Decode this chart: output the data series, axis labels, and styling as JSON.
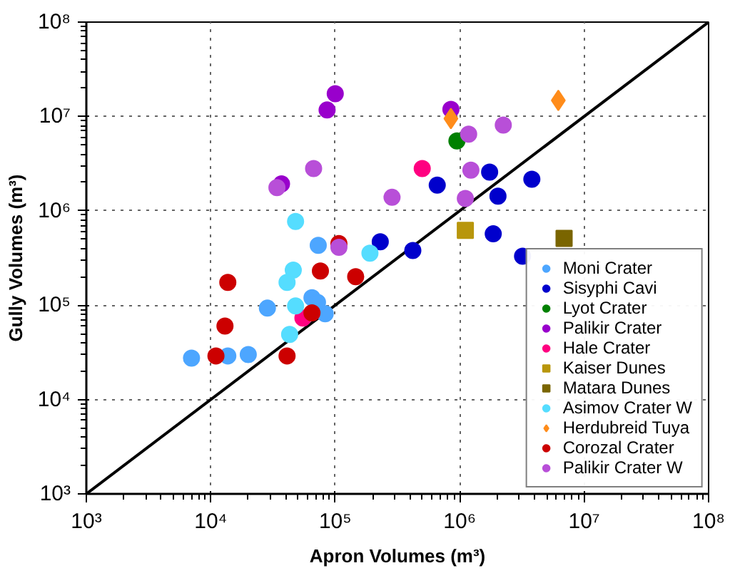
{
  "chart_data": {
    "type": "scatter",
    "xlabel": "Apron Volumes (m³)",
    "ylabel": "Gully Volumes (m³)",
    "log": "xy",
    "grid": true,
    "legend": "bottom right",
    "xlim": [
      1000,
      100000000
    ],
    "ylim": [
      1000,
      100000000
    ],
    "xticks": [
      {
        "value": 1000,
        "label": "10³"
      },
      {
        "value": 10000,
        "label": "10⁴"
      },
      {
        "value": 100000,
        "label": "10⁵"
      },
      {
        "value": 1000000,
        "label": "10⁶"
      },
      {
        "value": 10000000,
        "label": "10⁷"
      },
      {
        "value": 100000000,
        "label": "10⁸"
      }
    ],
    "yticks": [
      {
        "value": 1000,
        "label": "10³"
      },
      {
        "value": 10000,
        "label": "10⁴"
      },
      {
        "value": 100000,
        "label": "10⁵"
      },
      {
        "value": 1000000,
        "label": "10⁶"
      },
      {
        "value": 10000000,
        "label": "10⁷"
      },
      {
        "value": 100000000,
        "label": "10⁸"
      }
    ],
    "series": [
      {
        "type": "line",
        "color": "#000000",
        "marker": "none",
        "x": [
          1000,
          100000000
        ],
        "values": [
          1000,
          100000000
        ]
      },
      {
        "name": "Moni Crater",
        "color": "#4da6ff",
        "marker": "circle",
        "x": [
          7000,
          13700,
          20000,
          28500,
          65000,
          83000,
          72000,
          73000
        ],
        "values": [
          27500,
          29000,
          30000,
          93000,
          120000,
          81000,
          107000,
          430000
        ]
      },
      {
        "name": "Sisyphi Cavi",
        "color": "#0000cc",
        "marker": "circle",
        "x": [
          230000,
          420000,
          660000,
          1740000,
          3800000,
          2030000,
          1860000,
          3200000
        ],
        "values": [
          470000,
          380000,
          1870000,
          2570000,
          2160000,
          1430000,
          570000,
          330000
        ]
      },
      {
        "name": "Lyot Crater",
        "color": "#008000",
        "marker": "circle",
        "x": [
          950000
        ],
        "values": [
          5500000
        ]
      },
      {
        "name": "Palikir Crater",
        "color": "#9900cc",
        "marker": "circle",
        "x": [
          37000,
          86000,
          100000,
          850000
        ],
        "values": [
          1930000,
          11700000,
          17400000,
          11900000
        ]
      },
      {
        "name": "Hale Crater",
        "color": "#ff0080",
        "marker": "circle",
        "x": [
          55000,
          500000
        ],
        "values": [
          73000,
          2800000
        ]
      },
      {
        "name": "Kaiser Dunes",
        "color": "#b8960c",
        "marker": "square",
        "x": [
          1110000
        ],
        "values": [
          620000
        ]
      },
      {
        "name": "Matara Dunes",
        "color": "#7a6500",
        "marker": "square",
        "x": [
          6900000
        ],
        "values": [
          510000
        ]
      },
      {
        "name": "Asimov Crater W",
        "color": "#55ddff",
        "marker": "circle",
        "x": [
          43000,
          48000,
          41000,
          46000,
          190000,
          48000
        ],
        "values": [
          49000,
          98000,
          174000,
          235000,
          355000,
          770000
        ]
      },
      {
        "name": "Herdubreid Tuya",
        "color": "#ff8c1a",
        "marker": "diamond",
        "x": [
          850000,
          6200000
        ],
        "values": [
          9500000,
          14800000
        ]
      },
      {
        "name": "Corozal Crater",
        "color": "#cc0000",
        "marker": "circle",
        "x": [
          11000,
          41000,
          13000,
          13700,
          65000,
          76000,
          146000,
          107000
        ],
        "values": [
          29000,
          29000,
          60000,
          174000,
          83000,
          230000,
          200000,
          450000
        ]
      },
      {
        "name": "Palikir Crater W",
        "color": "#b84fd8",
        "marker": "circle",
        "x": [
          107000,
          34000,
          67000,
          286000,
          2240000,
          1180000,
          1230000,
          1110000
        ],
        "values": [
          410000,
          1760000,
          2800000,
          1390000,
          8100000,
          6500000,
          2700000,
          1350000
        ]
      }
    ]
  }
}
